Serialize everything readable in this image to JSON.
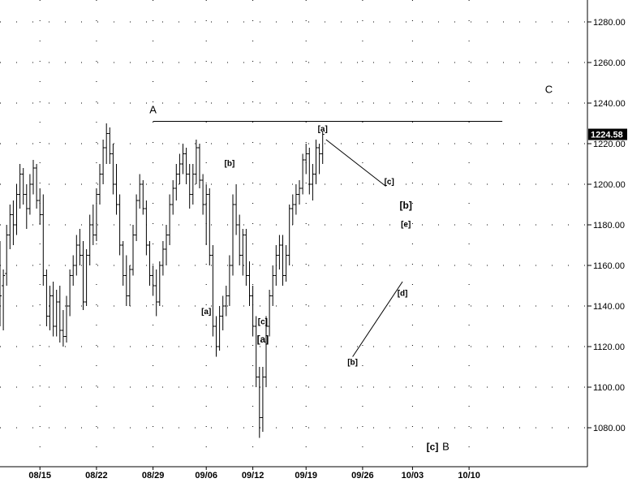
{
  "chart_data": {
    "type": "ohlc",
    "title": "",
    "xlabel": "",
    "ylabel": "",
    "ylim": [
      1060,
      1300
    ],
    "y_ticks": [
      1080,
      1100,
      1120,
      1140,
      1160,
      1180,
      1200,
      1220,
      1240,
      1260,
      1280
    ],
    "y_tick_labels": [
      "1080.00",
      "1100.00",
      "1120.00",
      "1140.00",
      "1160.00",
      "1180.00",
      "1200.00",
      "1220.00",
      "1240.00",
      "1260.00",
      "1280.00"
    ],
    "x_tick_labels": [
      {
        "label": "08/15",
        "bar": 12
      },
      {
        "label": "08/22",
        "bar": 29
      },
      {
        "label": "08/29",
        "bar": 46
      },
      {
        "label": "09/06",
        "bar": 62
      },
      {
        "label": "09/12",
        "bar": 76
      },
      {
        "label": "09/19",
        "bar": 92
      },
      {
        "label": "09/26",
        "bar": 109
      },
      {
        "label": "10/03",
        "bar": 124
      },
      {
        "label": "10/10",
        "bar": 141
      }
    ],
    "last_price": 1224.58,
    "last_price_label": "1224.58",
    "grid": "dotted",
    "bars": [
      [
        1170,
        1172,
        1130,
        1145
      ],
      [
        1150,
        1158,
        1128,
        1155
      ],
      [
        1156,
        1180,
        1150,
        1175
      ],
      [
        1175,
        1190,
        1168,
        1185
      ],
      [
        1185,
        1192,
        1170,
        1180
      ],
      [
        1180,
        1200,
        1175,
        1195
      ],
      [
        1195,
        1210,
        1188,
        1205
      ],
      [
        1205,
        1208,
        1190,
        1195
      ],
      [
        1195,
        1200,
        1178,
        1188
      ],
      [
        1188,
        1205,
        1185,
        1200
      ],
      [
        1200,
        1212,
        1195,
        1208
      ],
      [
        1208,
        1210,
        1188,
        1192
      ],
      [
        1192,
        1198,
        1180,
        1185
      ],
      [
        1185,
        1195,
        1150,
        1155
      ],
      [
        1155,
        1158,
        1130,
        1135
      ],
      [
        1135,
        1150,
        1128,
        1145
      ],
      [
        1145,
        1152,
        1125,
        1130
      ],
      [
        1130,
        1148,
        1125,
        1142
      ],
      [
        1142,
        1150,
        1122,
        1128
      ],
      [
        1128,
        1138,
        1120,
        1125
      ],
      [
        1125,
        1145,
        1122,
        1140
      ],
      [
        1140,
        1158,
        1135,
        1155
      ],
      [
        1155,
        1165,
        1150,
        1160
      ],
      [
        1160,
        1175,
        1155,
        1170
      ],
      [
        1170,
        1178,
        1160,
        1165
      ],
      [
        1165,
        1172,
        1138,
        1142
      ],
      [
        1142,
        1168,
        1140,
        1165
      ],
      [
        1165,
        1185,
        1160,
        1180
      ],
      [
        1180,
        1190,
        1170,
        1175
      ],
      [
        1175,
        1198,
        1172,
        1195
      ],
      [
        1195,
        1210,
        1190,
        1205
      ],
      [
        1205,
        1222,
        1200,
        1218
      ],
      [
        1218,
        1230,
        1210,
        1225
      ],
      [
        1225,
        1228,
        1210,
        1215
      ],
      [
        1215,
        1220,
        1195,
        1200
      ],
      [
        1200,
        1210,
        1185,
        1190
      ],
      [
        1190,
        1195,
        1165,
        1170
      ],
      [
        1170,
        1172,
        1150,
        1155
      ],
      [
        1155,
        1165,
        1140,
        1145
      ],
      [
        1145,
        1160,
        1140,
        1158
      ],
      [
        1158,
        1180,
        1155,
        1175
      ],
      [
        1175,
        1195,
        1172,
        1192
      ],
      [
        1192,
        1205,
        1188,
        1200
      ],
      [
        1200,
        1202,
        1185,
        1188
      ],
      [
        1188,
        1192,
        1165,
        1170
      ],
      [
        1170,
        1172,
        1150,
        1155
      ],
      [
        1155,
        1160,
        1145,
        1150
      ],
      [
        1150,
        1158,
        1135,
        1142
      ],
      [
        1142,
        1162,
        1140,
        1160
      ],
      [
        1160,
        1172,
        1155,
        1168
      ],
      [
        1168,
        1180,
        1160,
        1175
      ],
      [
        1175,
        1195,
        1170,
        1190
      ],
      [
        1190,
        1202,
        1185,
        1198
      ],
      [
        1198,
        1210,
        1192,
        1205
      ],
      [
        1205,
        1215,
        1200,
        1210
      ],
      [
        1210,
        1220,
        1205,
        1215
      ],
      [
        1215,
        1218,
        1200,
        1205
      ],
      [
        1205,
        1210,
        1188,
        1195
      ],
      [
        1195,
        1210,
        1190,
        1205
      ],
      [
        1205,
        1222,
        1200,
        1218
      ],
      [
        1218,
        1220,
        1198,
        1202
      ],
      [
        1202,
        1205,
        1185,
        1190
      ],
      [
        1190,
        1200,
        1170,
        1195
      ],
      [
        1195,
        1198,
        1160,
        1165
      ],
      [
        1165,
        1170,
        1125,
        1130
      ],
      [
        1130,
        1135,
        1115,
        1120
      ],
      [
        1120,
        1140,
        1118,
        1135
      ],
      [
        1135,
        1145,
        1128,
        1140
      ],
      [
        1140,
        1150,
        1135,
        1145
      ],
      [
        1145,
        1165,
        1140,
        1160
      ],
      [
        1160,
        1195,
        1155,
        1190
      ],
      [
        1190,
        1200,
        1175,
        1180
      ],
      [
        1180,
        1185,
        1160,
        1165
      ],
      [
        1165,
        1178,
        1155,
        1175
      ],
      [
        1175,
        1178,
        1150,
        1155
      ],
      [
        1155,
        1162,
        1140,
        1145
      ],
      [
        1145,
        1150,
        1125,
        1130
      ],
      [
        1130,
        1135,
        1100,
        1105
      ],
      [
        1105,
        1110,
        1075,
        1085
      ],
      [
        1085,
        1110,
        1078,
        1105
      ],
      [
        1105,
        1135,
        1100,
        1130
      ],
      [
        1130,
        1148,
        1125,
        1145
      ],
      [
        1145,
        1160,
        1140,
        1155
      ],
      [
        1155,
        1170,
        1150,
        1165
      ],
      [
        1165,
        1175,
        1158,
        1170
      ],
      [
        1170,
        1175,
        1150,
        1155
      ],
      [
        1155,
        1170,
        1152,
        1165
      ],
      [
        1165,
        1190,
        1160,
        1188
      ],
      [
        1188,
        1195,
        1180,
        1190
      ],
      [
        1190,
        1200,
        1185,
        1195
      ],
      [
        1195,
        1202,
        1190,
        1198
      ],
      [
        1198,
        1215,
        1195,
        1212
      ],
      [
        1212,
        1220,
        1205,
        1215
      ],
      [
        1215,
        1218,
        1195,
        1200
      ],
      [
        1200,
        1210,
        1192,
        1205
      ],
      [
        1205,
        1222,
        1200,
        1218
      ],
      [
        1218,
        1220,
        1205,
        1215
      ],
      [
        1215,
        1226,
        1210,
        1224.58
      ]
    ],
    "wave_labels": [
      {
        "text": "A",
        "bar": 46,
        "price": 1235,
        "size": "large"
      },
      {
        "text": "[a]",
        "bar": 62,
        "price": 1136,
        "size": "small"
      },
      {
        "text": "[b]",
        "bar": 69,
        "price": 1209,
        "size": "small"
      },
      {
        "text": "[c]",
        "bar": 79,
        "price": 1131,
        "size": "small"
      },
      {
        "text": "[a]",
        "bar": 79,
        "price": 1122,
        "size": "bracket"
      },
      {
        "text": "[a]",
        "bar": 97,
        "price": 1226,
        "size": "small"
      },
      {
        "text": "[b]",
        "bar": 106,
        "price": 1111,
        "size": "small"
      },
      {
        "text": "[c]",
        "bar": 117,
        "price": 1200,
        "size": "small"
      },
      {
        "text": "[b]",
        "bar": 122,
        "price": 1188,
        "size": "bracket"
      },
      {
        "text": "[e]",
        "bar": 122,
        "price": 1179,
        "size": "small"
      },
      {
        "text": "[d]",
        "bar": 121,
        "price": 1145,
        "size": "small"
      },
      {
        "text": "[c]",
        "bar": 130,
        "price": 1069,
        "size": "bracket"
      },
      {
        "text": "B",
        "bar": 134,
        "price": 1069,
        "size": "large"
      },
      {
        "text": "C",
        "bar": 165,
        "price": 1245,
        "size": "large"
      }
    ],
    "lines": [
      {
        "name": "horizontal-top-line",
        "from": {
          "bar": 46,
          "price": 1231
        },
        "to": {
          "bar": 151,
          "price": 1231
        }
      },
      {
        "name": "trend-line-a-to-c",
        "from": {
          "bar": 98,
          "price": 1222
        },
        "to": {
          "bar": 116,
          "price": 1199
        }
      },
      {
        "name": "trend-line-b-to-d",
        "from": {
          "bar": 106,
          "price": 1115
        },
        "to": {
          "bar": 121,
          "price": 1152
        }
      }
    ]
  }
}
